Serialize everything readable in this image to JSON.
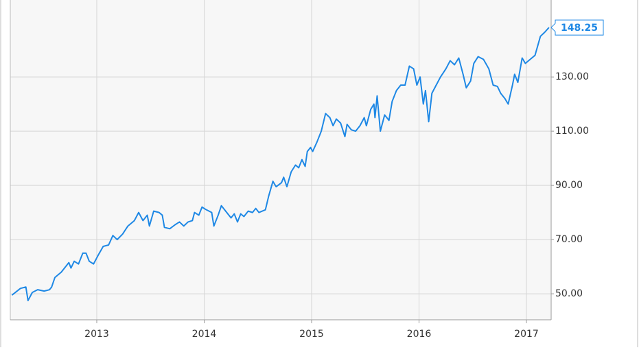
{
  "chart_data": {
    "type": "line",
    "x": [
      2012.21,
      2012.29,
      2012.34,
      2012.36,
      2012.4,
      2012.45,
      2012.51,
      2012.56,
      2012.58,
      2012.61,
      2012.67,
      2012.74,
      2012.76,
      2012.79,
      2012.83,
      2012.87,
      2012.9,
      2012.93,
      2012.97,
      2013.01,
      2013.06,
      2013.11,
      2013.15,
      2013.19,
      2013.24,
      2013.29,
      2013.35,
      2013.39,
      2013.43,
      2013.47,
      2013.49,
      2013.53,
      2013.58,
      2013.61,
      2013.63,
      2013.68,
      2013.73,
      2013.77,
      2013.81,
      2013.85,
      2013.89,
      2013.91,
      2013.95,
      2013.98,
      2014.02,
      2014.07,
      2014.09,
      2014.13,
      2014.16,
      2014.21,
      2014.25,
      2014.28,
      2014.31,
      2014.34,
      2014.37,
      2014.41,
      2014.45,
      2014.48,
      2014.51,
      2014.57,
      2014.6,
      2014.64,
      2014.67,
      2014.72,
      2014.74,
      2014.77,
      2014.81,
      2014.85,
      2014.88,
      2014.91,
      2014.94,
      2014.96,
      2014.99,
      2015.01,
      2015.05,
      2015.09,
      2015.13,
      2015.17,
      2015.2,
      2015.23,
      2015.27,
      2015.31,
      2015.33,
      2015.37,
      2015.41,
      2015.45,
      2015.49,
      2015.51,
      2015.55,
      2015.58,
      2015.59,
      2015.61,
      2015.64,
      2015.68,
      2015.72,
      2015.75,
      2015.79,
      2015.83,
      2015.87,
      2015.91,
      2015.95,
      2015.98,
      2016.01,
      2016.04,
      2016.06,
      2016.09,
      2016.12,
      2016.16,
      2016.2,
      2016.25,
      2016.29,
      2016.33,
      2016.37,
      2016.41,
      2016.44,
      2016.48,
      2016.51,
      2016.55,
      2016.6,
      2016.65,
      2016.69,
      2016.73,
      2016.76,
      2016.8,
      2016.83,
      2016.87,
      2016.89,
      2016.92,
      2016.96,
      2016.99,
      2017.05,
      2017.08,
      2017.13,
      2017.17,
      2017.21
    ],
    "values": [
      49.5,
      52,
      52.5,
      47.5,
      50.5,
      51.5,
      51,
      51.5,
      52.5,
      56,
      58,
      61.5,
      59.5,
      62,
      61,
      65,
      65,
      62,
      61,
      64,
      67.5,
      68,
      71.5,
      70,
      72,
      75,
      77,
      80,
      77,
      79,
      75,
      80.5,
      80,
      79,
      74.5,
      74,
      75.5,
      76.5,
      75,
      76.5,
      77,
      80,
      79,
      82,
      81,
      80,
      75,
      79,
      82.5,
      80,
      78,
      79.5,
      76.5,
      79.5,
      78.5,
      80.5,
      80,
      81.5,
      80,
      81,
      86,
      91.5,
      89.5,
      91,
      93,
      89.5,
      95,
      97.5,
      96.5,
      99.5,
      97,
      102.5,
      104,
      102.5,
      106,
      110,
      116.5,
      115,
      112,
      114.5,
      113,
      108,
      112.5,
      110.5,
      110,
      112,
      115,
      112,
      118,
      120,
      115,
      123,
      110,
      116,
      114,
      121,
      125,
      127,
      127,
      134,
      133,
      127,
      130,
      120,
      125,
      113.5,
      124,
      127,
      130,
      133,
      136,
      134.5,
      137,
      131,
      126,
      128.5,
      135,
      137.5,
      136.5,
      133,
      127,
      126.5,
      124,
      122,
      120,
      127,
      131,
      128,
      137,
      135,
      137,
      138,
      145,
      146.5,
      148.25
    ],
    "color": "#1e88e5",
    "xlim": [
      2012.195,
      2017.23
    ],
    "xticks": [
      2013,
      2014,
      2015,
      2016,
      2017
    ],
    "ylim": [
      40.4,
      158.4
    ],
    "yticks": [
      {
        "value": 50,
        "label": "50.00"
      },
      {
        "value": 70,
        "label": "70.00"
      },
      {
        "value": 90,
        "label": "90.00"
      },
      {
        "value": 110,
        "label": "110.00"
      },
      {
        "value": 130,
        "label": "130.00"
      }
    ],
    "grid": true
  }
}
